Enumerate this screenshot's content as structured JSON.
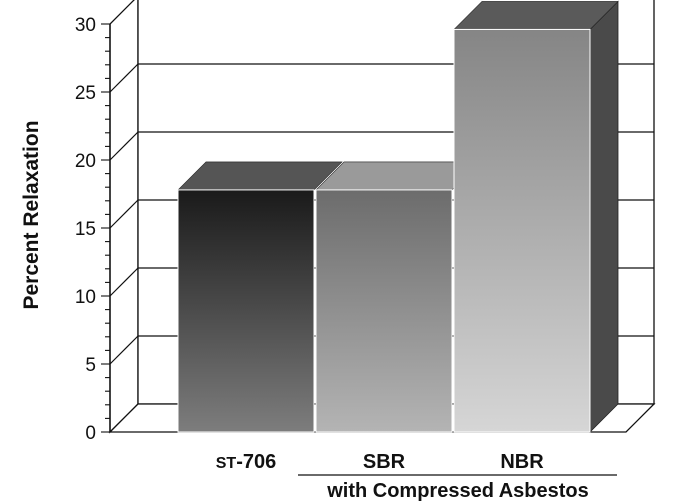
{
  "chart_data": {
    "type": "bar",
    "style": "3d",
    "categories": [
      "ST-706",
      "SBR",
      "NBR"
    ],
    "values": [
      17.8,
      17.8,
      29.6
    ],
    "ylabel": "Percent  Relaxation",
    "ylim": [
      0,
      30
    ],
    "yticks": [
      0,
      5,
      10,
      15,
      20,
      25,
      30
    ],
    "grid": true,
    "group_label": "with Compressed Asbestos",
    "grouped_categories": [
      "SBR",
      "NBR"
    ],
    "bar_colors": [
      {
        "top": "#1a1a1a",
        "bottom": "#7d7d7d",
        "cap": "#555555"
      },
      {
        "top": "#6c6c6c",
        "bottom": "#b4b4b4",
        "cap": "#9a9a9a"
      },
      {
        "top": "#858585",
        "bottom": "#d6d6d6",
        "cap": "#5a5a5a",
        "side": "#4a4a4a"
      }
    ]
  }
}
